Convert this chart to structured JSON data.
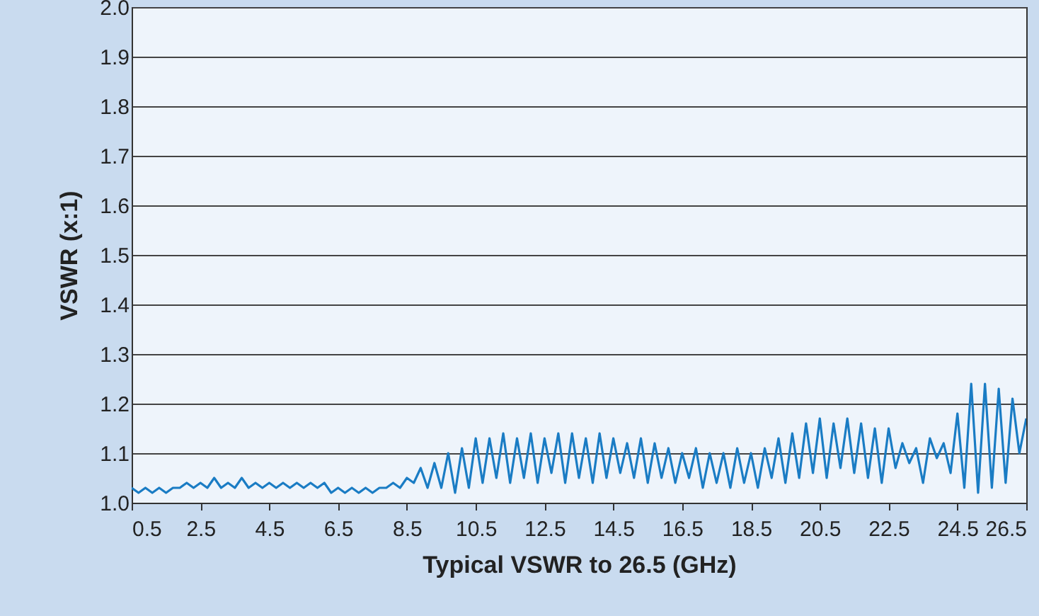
{
  "chart_data": {
    "type": "line",
    "xlabel": "Typical VSWR to 26.5 (GHz)",
    "ylabel": "VSWR (x:1)",
    "xlim": [
      0.5,
      26.5
    ],
    "xticks": [
      0.5,
      2.5,
      4.5,
      6.5,
      8.5,
      10.5,
      12.5,
      14.5,
      16.5,
      18.5,
      20.5,
      22.5,
      24.5,
      26.5
    ],
    "ylim": [
      1.0,
      2.0
    ],
    "yticks": [
      {
        "value": 1,
        "label": "1.0"
      },
      1.1,
      1.2,
      1.3,
      1.4,
      1.5,
      1.6,
      1.7,
      1.8,
      1.9,
      {
        "value": 2,
        "label": "2.0"
      }
    ],
    "grid": "y",
    "marker": "none",
    "line_style": "solid",
    "x": [
      0.5,
      0.7,
      0.9,
      1.1,
      1.3,
      1.5,
      1.7,
      1.9,
      2.1,
      2.3,
      2.5,
      2.7,
      2.9,
      3.1,
      3.3,
      3.5,
      3.7,
      3.9,
      4.1,
      4.3,
      4.5,
      4.7,
      4.9,
      5.1,
      5.3,
      5.5,
      5.7,
      5.9,
      6.1,
      6.3,
      6.5,
      6.7,
      6.9,
      7.1,
      7.3,
      7.5,
      7.7,
      7.9,
      8.1,
      8.3,
      8.5,
      8.7,
      8.9,
      9.1,
      9.3,
      9.5,
      9.7,
      9.9,
      10.1,
      10.3,
      10.5,
      10.7,
      10.9,
      11.1,
      11.3,
      11.5,
      11.7,
      11.9,
      12.1,
      12.3,
      12.5,
      12.7,
      12.9,
      13.1,
      13.3,
      13.5,
      13.7,
      13.9,
      14.1,
      14.3,
      14.5,
      14.7,
      14.9,
      15.1,
      15.3,
      15.5,
      15.7,
      15.9,
      16.1,
      16.3,
      16.5,
      16.7,
      16.9,
      17.1,
      17.3,
      17.5,
      17.7,
      17.9,
      18.1,
      18.3,
      18.5,
      18.7,
      18.9,
      19.1,
      19.3,
      19.5,
      19.7,
      19.9,
      20.1,
      20.3,
      20.5,
      20.7,
      20.9,
      21.1,
      21.3,
      21.5,
      21.7,
      21.9,
      22.1,
      22.3,
      22.5,
      22.7,
      22.9,
      23.1,
      23.3,
      23.5,
      23.7,
      23.9,
      24.1,
      24.3,
      24.5,
      24.7,
      24.9,
      25.1,
      25.3,
      25.5,
      25.7,
      25.9,
      26.1,
      26.3,
      26.5
    ],
    "series": [
      {
        "color": "#1a7cc4",
        "values": [
          1.03,
          1.02,
          1.03,
          1.02,
          1.03,
          1.02,
          1.03,
          1.03,
          1.04,
          1.03,
          1.04,
          1.03,
          1.05,
          1.03,
          1.04,
          1.03,
          1.05,
          1.03,
          1.04,
          1.03,
          1.04,
          1.03,
          1.04,
          1.03,
          1.04,
          1.03,
          1.04,
          1.03,
          1.04,
          1.02,
          1.03,
          1.02,
          1.03,
          1.02,
          1.03,
          1.02,
          1.03,
          1.03,
          1.04,
          1.03,
          1.05,
          1.04,
          1.07,
          1.03,
          1.08,
          1.03,
          1.1,
          1.02,
          1.11,
          1.03,
          1.13,
          1.04,
          1.13,
          1.05,
          1.14,
          1.04,
          1.13,
          1.05,
          1.14,
          1.04,
          1.13,
          1.06,
          1.14,
          1.04,
          1.14,
          1.05,
          1.13,
          1.04,
          1.14,
          1.05,
          1.13,
          1.06,
          1.12,
          1.05,
          1.13,
          1.04,
          1.12,
          1.05,
          1.11,
          1.04,
          1.1,
          1.05,
          1.11,
          1.03,
          1.1,
          1.04,
          1.1,
          1.03,
          1.11,
          1.04,
          1.1,
          1.03,
          1.11,
          1.05,
          1.13,
          1.04,
          1.14,
          1.05,
          1.16,
          1.06,
          1.17,
          1.05,
          1.16,
          1.07,
          1.17,
          1.06,
          1.16,
          1.05,
          1.15,
          1.04,
          1.15,
          1.07,
          1.12,
          1.08,
          1.11,
          1.04,
          1.13,
          1.09,
          1.12,
          1.06,
          1.18,
          1.03,
          1.24,
          1.02,
          1.24,
          1.03,
          1.23,
          1.04,
          1.21,
          1.1,
          1.17
        ]
      }
    ]
  }
}
